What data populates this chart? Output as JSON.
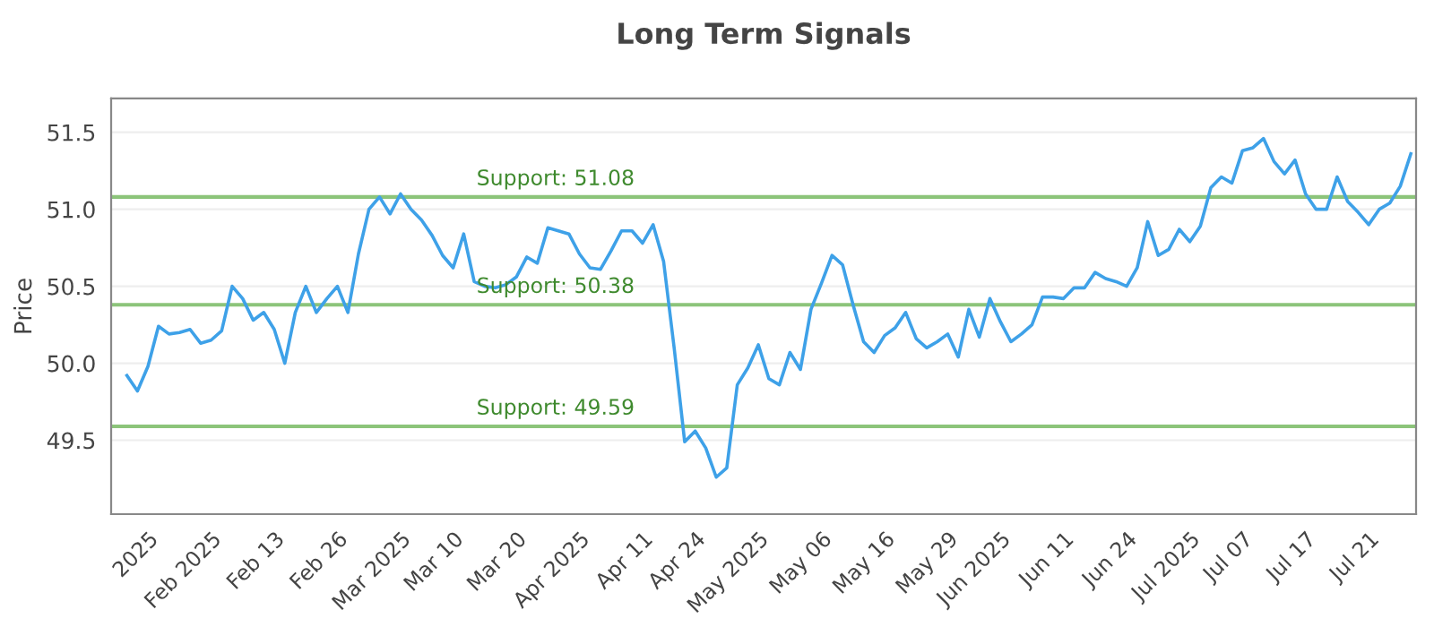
{
  "chart_data": {
    "type": "line",
    "title": "Long Term Signals",
    "ylabel": "Price",
    "categories": [
      null,
      null,
      "2025",
      null,
      null,
      null,
      null,
      null,
      "Feb 2025",
      null,
      null,
      null,
      null,
      null,
      "Feb 13",
      null,
      null,
      null,
      null,
      null,
      "Feb 26",
      null,
      null,
      null,
      null,
      null,
      "Mar 2025",
      null,
      null,
      null,
      null,
      "Mar 10",
      null,
      null,
      null,
      null,
      null,
      "Mar 20",
      null,
      null,
      null,
      null,
      null,
      "Apr 2025",
      null,
      null,
      null,
      null,
      null,
      "Apr 11",
      null,
      null,
      null,
      null,
      "Apr 24",
      null,
      null,
      null,
      null,
      null,
      "May 2025",
      null,
      null,
      null,
      null,
      null,
      "May 06",
      null,
      null,
      null,
      null,
      null,
      "May 16",
      null,
      null,
      null,
      null,
      null,
      "May 29",
      null,
      null,
      null,
      null,
      "Jun 2025",
      null,
      null,
      null,
      null,
      null,
      "Jun 11",
      null,
      null,
      null,
      null,
      null,
      "Jun 24",
      null,
      null,
      null,
      null,
      null,
      "Jul 2025",
      null,
      null,
      null,
      null,
      "Jul 07",
      null,
      null,
      null,
      null,
      null,
      "Jul 17",
      null,
      null,
      null,
      null,
      null,
      "Jul 21",
      null,
      null,
      null,
      null
    ],
    "series": [
      {
        "color": "#3ea1e8",
        "values": [
          49.92,
          49.82,
          49.98,
          50.24,
          50.19,
          50.2,
          50.22,
          50.13,
          50.15,
          50.21,
          50.5,
          50.42,
          50.28,
          50.33,
          50.22,
          50.0,
          50.33,
          50.5,
          50.33,
          50.42,
          50.5,
          50.33,
          50.71,
          51.0,
          51.08,
          50.97,
          51.1,
          51.0,
          50.93,
          50.83,
          50.7,
          50.62,
          50.84,
          50.53,
          50.5,
          50.49,
          50.51,
          50.56,
          50.69,
          50.65,
          50.88,
          50.86,
          50.84,
          50.71,
          50.62,
          50.61,
          50.73,
          50.86,
          50.86,
          50.78,
          50.9,
          50.66,
          50.1,
          49.49,
          49.56,
          49.45,
          49.26,
          49.32,
          49.86,
          49.97,
          50.12,
          49.9,
          49.86,
          50.07,
          49.96,
          50.35,
          50.52,
          50.7,
          50.64,
          50.38,
          50.14,
          50.07,
          50.18,
          50.23,
          50.33,
          50.16,
          50.1,
          50.14,
          50.19,
          50.04,
          50.35,
          50.17,
          50.42,
          50.27,
          50.14,
          50.19,
          50.25,
          50.43,
          50.43,
          50.42,
          50.49,
          50.49,
          50.59,
          50.55,
          50.53,
          50.5,
          50.62,
          50.92,
          50.7,
          50.74,
          50.87,
          50.79,
          50.89,
          51.14,
          51.21,
          51.17,
          51.38,
          51.4,
          51.46,
          51.31,
          51.23,
          51.32,
          51.1,
          51.0,
          51.0,
          51.21,
          51.05,
          50.98,
          50.9,
          51.0,
          51.04,
          51.15,
          51.36
        ]
      }
    ],
    "ylim": [
      49.02,
      51.72
    ],
    "yticks": [
      49.5,
      {
        "value": 50.0,
        "label": "50.0"
      },
      50.5,
      {
        "value": 51.0,
        "label": "51.0"
      },
      51.5
    ],
    "ref_lines": [
      {
        "axis": "y",
        "value": 51.08,
        "label": "Support: 51.08",
        "color": "#8cc47a"
      },
      {
        "axis": "y",
        "value": 50.38,
        "label": "Support: 50.38",
        "color": "#8cc47a"
      },
      {
        "axis": "y",
        "value": 49.59,
        "label": "Support: 49.59",
        "color": "#8cc47a"
      }
    ],
    "grid": "y",
    "legend": false,
    "marker": "none",
    "line_style": "solid"
  }
}
